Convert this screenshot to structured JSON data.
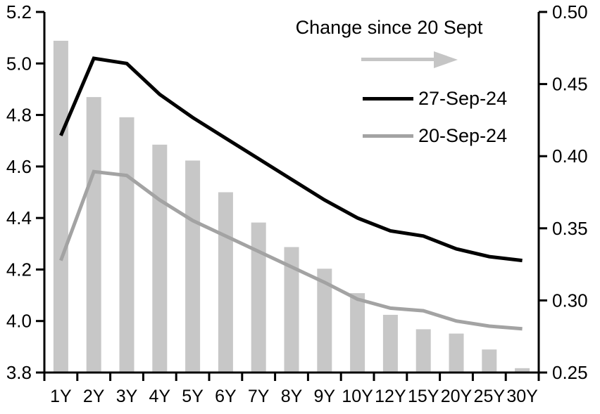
{
  "chart_data": {
    "type": "bar+line",
    "title": "",
    "categories": [
      "1Y",
      "2Y",
      "3Y",
      "4Y",
      "5Y",
      "6Y",
      "7Y",
      "8Y",
      "9Y",
      "10Y",
      "12Y",
      "15Y",
      "20Y",
      "25Y",
      "30Y"
    ],
    "bar_series": {
      "name": "Change since 20 Sept",
      "axis": "right",
      "color": "#c7c7c7",
      "values": [
        0.48,
        0.441,
        0.427,
        0.408,
        0.397,
        0.375,
        0.354,
        0.337,
        0.322,
        0.305,
        0.29,
        0.28,
        0.277,
        0.266,
        0.253
      ]
    },
    "line_series": [
      {
        "name": "27-Sep-24",
        "axis": "left",
        "color": "#000000",
        "values": [
          4.72,
          5.02,
          5.0,
          4.88,
          4.79,
          4.71,
          4.63,
          4.55,
          4.47,
          4.4,
          4.35,
          4.33,
          4.28,
          4.25,
          4.235
        ]
      },
      {
        "name": "20-Sep-24",
        "axis": "left",
        "color": "#a3a3a3",
        "values": [
          4.235,
          4.58,
          4.565,
          4.47,
          4.39,
          4.33,
          4.27,
          4.21,
          4.15,
          4.085,
          4.05,
          4.04,
          4.0,
          3.98,
          3.97
        ]
      }
    ],
    "left_axis": {
      "min": 3.8,
      "max": 5.2,
      "ticks": [
        "5.2",
        "5.0",
        "4.8",
        "4.6",
        "4.4",
        "4.2",
        "4.0",
        "3.8"
      ]
    },
    "right_axis": {
      "min": 0.25,
      "max": 0.5,
      "ticks": [
        "0.50",
        "0.45",
        "0.40",
        "0.35",
        "0.30",
        "0.25"
      ]
    },
    "legend": {
      "title": "Change since 20 Sept",
      "arrow_color": "#c5c5c5",
      "entries": [
        "27-Sep-24",
        "20-Sep-24"
      ]
    },
    "grid": false,
    "legend_position": "top-right-inside"
  }
}
